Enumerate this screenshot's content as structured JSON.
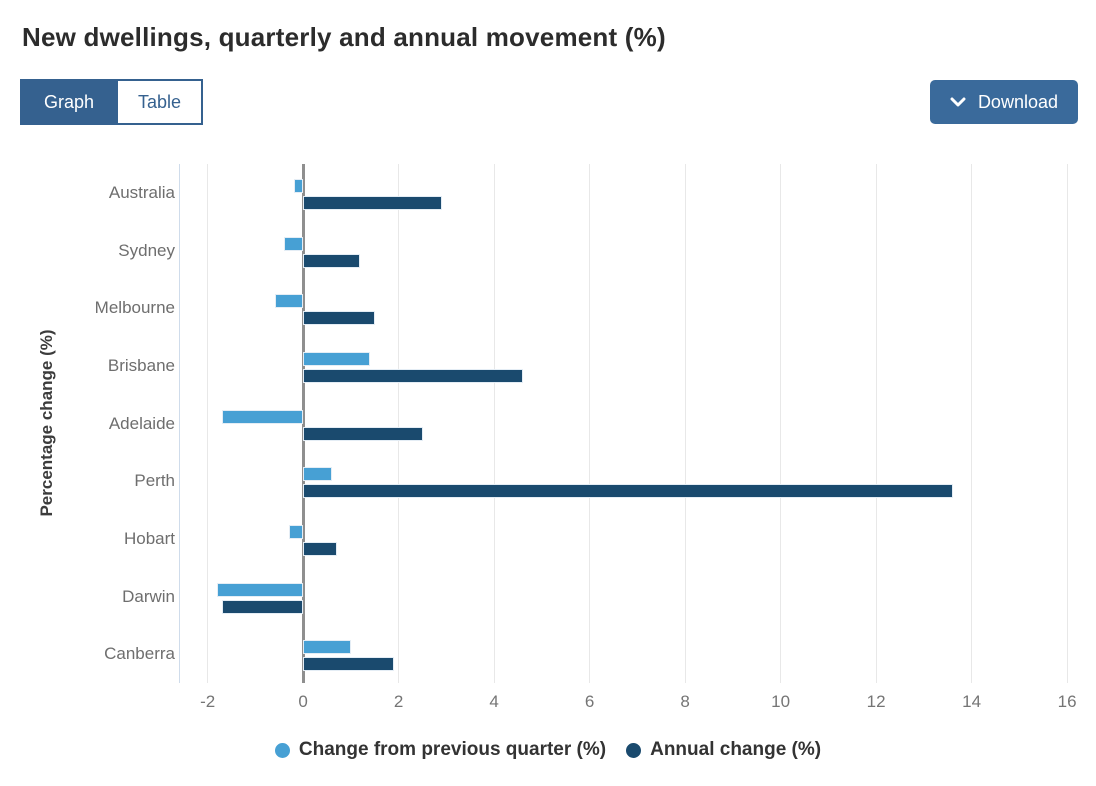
{
  "view_toggle": {
    "graph_label": "Graph",
    "table_label": "Table",
    "active_tab": "Graph"
  },
  "download_button": {
    "label": "Download"
  },
  "colors": {
    "accent_blue": "#35618F",
    "download_bg": "#3A6A9B",
    "title_text": "#2C2C2C",
    "gridline": "#E8E8E8",
    "zero_line": "#8F8F8F",
    "plot_left_border": "#CFDCEB",
    "quarterly_series": "#47A0D4",
    "annual_series": "#1A4A6E"
  },
  "chart_data": {
    "type": "bar",
    "orientation": "horizontal",
    "title": "New dwellings, quarterly and annual movement (%)",
    "ylabel": "Percentage change (%)",
    "xlabel": "",
    "categories": [
      "Australia",
      "Sydney",
      "Melbourne",
      "Brisbane",
      "Adelaide",
      "Perth",
      "Hobart",
      "Darwin",
      "Canberra"
    ],
    "series": [
      {
        "name": "Change from previous quarter (%)",
        "color": "#47A0D4",
        "values": [
          -0.2,
          -0.4,
          -0.6,
          1.4,
          -1.7,
          0.6,
          -0.3,
          -1.8,
          1.0
        ]
      },
      {
        "name": "Annual change (%)",
        "color": "#1A4A6E",
        "values": [
          2.9,
          1.2,
          1.5,
          4.6,
          2.5,
          13.6,
          0.7,
          -1.7,
          1.9
        ]
      }
    ],
    "x_ticks": [
      -2,
      0,
      2,
      4,
      6,
      8,
      10,
      12,
      14,
      16
    ],
    "xlim": [
      -2.6,
      16.2
    ],
    "grid": true,
    "legend_position": "bottom"
  }
}
